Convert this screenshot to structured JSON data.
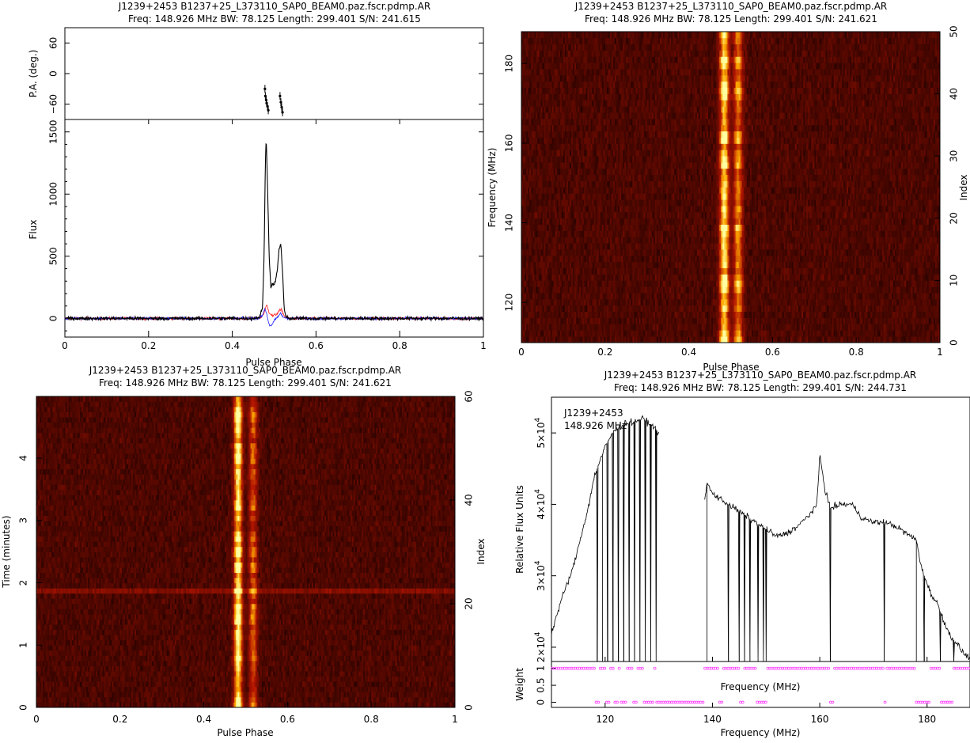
{
  "colors": {
    "background": "#ffffff",
    "axes": "#000000",
    "stokes_I": "#000000",
    "stokes_L": "#ff2020",
    "stokes_V": "#2020ff",
    "weight_marker": "#ff40ff",
    "heat_low": "#100000",
    "heat_mid": "#a02000",
    "heat_high": "#ffff90"
  },
  "chart_data": [
    {
      "id": "profile",
      "type": "line",
      "title_line1": "J1239+2453  B1237+25_L373110_SAP0_BEAM0.paz.fscr.pdmp.AR",
      "title_line2": "Freq:  148.926  MHz  BW:  78.125  Length:  299.401  S/N:  241.615",
      "xlabel": "Pulse Phase",
      "xlim": [
        0,
        1
      ],
      "xticks": [
        "0",
        "0.2",
        "0.4",
        "0.6",
        "0.8",
        "1"
      ],
      "pa_panel": {
        "ylabel": "P.A. (deg.)",
        "ylim": [
          -90,
          90
        ],
        "yticks": [
          "60",
          "0",
          "−60"
        ],
        "points": [
          {
            "x": 0.478,
            "y": -30
          },
          {
            "x": 0.479,
            "y": -44
          },
          {
            "x": 0.481,
            "y": -52
          },
          {
            "x": 0.482,
            "y": -58
          },
          {
            "x": 0.484,
            "y": -64
          },
          {
            "x": 0.486,
            "y": -72
          },
          {
            "x": 0.514,
            "y": -44
          },
          {
            "x": 0.516,
            "y": -56
          },
          {
            "x": 0.518,
            "y": -66
          },
          {
            "x": 0.52,
            "y": -76
          }
        ]
      },
      "flux_panel": {
        "ylabel": "Flux",
        "ylim": [
          -150,
          1600
        ],
        "yticks": [
          "0",
          "500",
          "1000",
          "1500"
        ],
        "series": [
          {
            "name": "I",
            "x": [
              0.45,
              0.465,
              0.472,
              0.476,
              0.479,
              0.481,
              0.484,
              0.488,
              0.492,
              0.496,
              0.5,
              0.504,
              0.508,
              0.512,
              0.516,
              0.52,
              0.524,
              0.528,
              0.535
            ],
            "values": [
              0,
              10,
              80,
              500,
              1250,
              1460,
              1100,
              520,
              240,
              290,
              260,
              320,
              400,
              560,
              600,
              380,
              80,
              10,
              0
            ]
          },
          {
            "name": "L",
            "x": [
              0.45,
              0.47,
              0.478,
              0.482,
              0.488,
              0.496,
              0.504,
              0.512,
              0.518,
              0.524,
              0.535
            ],
            "values": [
              0,
              10,
              60,
              110,
              50,
              20,
              30,
              60,
              70,
              20,
              0
            ]
          },
          {
            "name": "V",
            "x": [
              0.45,
              0.47,
              0.478,
              0.482,
              0.488,
              0.494,
              0.5,
              0.508,
              0.515,
              0.522,
              0.535
            ],
            "values": [
              0,
              10,
              80,
              40,
              -50,
              -60,
              -20,
              10,
              40,
              10,
              0
            ]
          }
        ]
      }
    },
    {
      "id": "freq_phase",
      "type": "heatmap",
      "title_line1": "J1239+2453  B1237+25_L373110_SAP0_BEAM0.paz.fscr.pdmp.AR",
      "title_line2": "Freq:  148.926  MHz  BW:  78.125  Length:  299.401  S/N:  241.621",
      "xlabel": "Pulse Phase",
      "ylabel_left": "Frequency (MHz)",
      "ylabel_right": "Index",
      "xlim": [
        0,
        1
      ],
      "ylim_left": [
        109.9,
        188.0
      ],
      "ylim_right": [
        0,
        50
      ],
      "xticks": [
        "0",
        "0.2",
        "0.4",
        "0.6",
        "0.8",
        "1"
      ],
      "yticks_left": [
        "120",
        "140",
        "160",
        "180"
      ],
      "yticks_right": [
        "0",
        "10",
        "20",
        "30",
        "40",
        "50"
      ],
      "pulse_components": [
        {
          "center": 0.485,
          "width": 0.008,
          "strength": 1.0
        },
        {
          "center": 0.518,
          "width": 0.008,
          "strength": 0.7
        }
      ]
    },
    {
      "id": "time_phase",
      "type": "heatmap",
      "title_line1": "J1239+2453  B1237+25_L373110_SAP0_BEAM0.paz.fscr.pdmp.AR",
      "title_line2": "Freq:  148.926  MHz  BW:  78.125  Length:  299.401  S/N:  241.621",
      "xlabel": "Pulse Phase",
      "ylabel_left": "Time (minutes)",
      "ylabel_right": "Index",
      "xlim": [
        0,
        1
      ],
      "ylim_left": [
        0,
        4.99
      ],
      "ylim_right": [
        0,
        60
      ],
      "xticks": [
        "0",
        "0.2",
        "0.4",
        "0.6",
        "0.8",
        "1"
      ],
      "yticks_left": [
        "0",
        "1",
        "2",
        "3",
        "4"
      ],
      "yticks_right": [
        "0",
        "20",
        "40",
        "60"
      ],
      "bright_row_minutes": 1.88,
      "pulse_components": [
        {
          "center": 0.482,
          "width": 0.007,
          "strength": 1.0
        },
        {
          "center": 0.518,
          "width": 0.007,
          "strength": 0.55
        }
      ]
    },
    {
      "id": "bandpass",
      "type": "line",
      "title_line1": "J1239+2453  B1237+25_L373110_SAP0_BEAM0.paz.fscr.pdmp.AR",
      "title_line2": "Freq:  148.926  MHz  BW:  78.125  Length:  299.401  S/N:  244.731",
      "annotation_line1": "J1239+2453",
      "annotation_line2": "148.926  MHz",
      "xlabel": "Frequency (MHz)",
      "xlim": [
        110,
        188
      ],
      "xticks": [
        "120",
        "140",
        "160",
        "180"
      ],
      "flux_panel": {
        "ylabel": "Relative Flux Units",
        "ylim": [
          18000,
          55000
        ],
        "yticks": [
          {
            "mantissa": "2",
            "value": 20000
          },
          {
            "mantissa": "3",
            "value": 30000
          },
          {
            "mantissa": "4",
            "value": 40000
          },
          {
            "mantissa": "5",
            "value": 50000
          }
        ],
        "ytick_base": "×10",
        "ytick_exp": "4",
        "x": [
          110,
          112,
          114,
          116,
          117,
          118,
          119,
          120,
          121,
          122,
          123,
          124,
          125,
          126,
          127,
          128,
          129,
          130,
          138.5,
          139,
          140,
          142,
          144,
          146,
          148,
          150,
          152,
          154,
          156,
          158,
          159.5,
          160,
          161,
          162,
          164,
          166,
          168,
          170,
          172,
          174,
          176,
          178,
          179,
          180,
          181,
          182,
          183,
          184,
          185,
          186,
          187,
          188
        ],
        "values": [
          22000,
          27000,
          31000,
          37000,
          40000,
          44000,
          46000,
          48000,
          49500,
          50500,
          51000,
          51500,
          51500,
          51800,
          52000,
          51500,
          51000,
          50000,
          40000,
          43000,
          41500,
          40500,
          39500,
          38500,
          37500,
          36500,
          35500,
          36000,
          37000,
          38500,
          40000,
          47000,
          42000,
          39500,
          40000,
          40000,
          38000,
          37500,
          37500,
          37000,
          36000,
          35000,
          31000,
          29000,
          27000,
          26000,
          24000,
          22000,
          21000,
          20000,
          19000,
          18500
        ],
        "dropout_x": [
          118.5,
          119.5,
          120.5,
          121.5,
          122.5,
          123.5,
          124.5,
          125.5,
          126.5,
          127.5,
          128.5,
          129.5,
          139,
          143,
          145,
          146,
          147,
          148.5,
          149.5,
          150,
          162,
          172,
          178,
          179.5,
          182.5,
          185
        ]
      },
      "weight_panel": {
        "ylabel": "Weight",
        "ylim": [
          -0.15,
          1.2
        ],
        "yticks": [
          "0",
          "0.5",
          "1"
        ],
        "xlabel": "Frequency (MHz)",
        "zero_ranges": [
          [
            118,
            119
          ],
          [
            120,
            121
          ],
          [
            121.5,
            122.5
          ],
          [
            123,
            124
          ],
          [
            125,
            126
          ],
          [
            127,
            129
          ],
          [
            129.5,
            138.5
          ],
          [
            141,
            142
          ],
          [
            145,
            146
          ],
          [
            148,
            150
          ],
          [
            162,
            162.5
          ],
          [
            172,
            172.5
          ],
          [
            178,
            180.5
          ],
          [
            182.5,
            185
          ]
        ]
      }
    }
  ]
}
